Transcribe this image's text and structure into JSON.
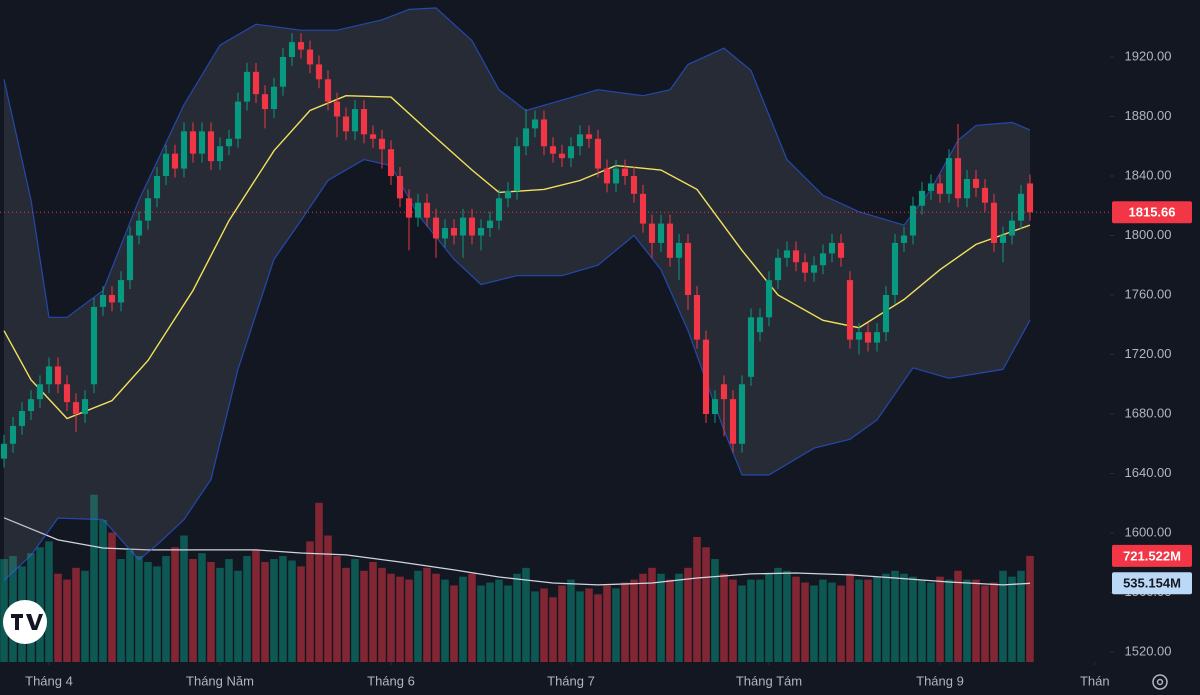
{
  "chart_data": {
    "type": "candlestick",
    "xlim": [
      -0.444,
      122.89
    ],
    "ylim": [
      1513.3,
      1958.3
    ],
    "yticks": [
      {
        "value": 1520,
        "label": "1520.00"
      },
      {
        "value": 1560,
        "label": "1560.00"
      },
      {
        "value": 1600,
        "label": "1600.00"
      },
      {
        "value": 1640,
        "label": "1640.00"
      },
      {
        "value": 1680,
        "label": "1680.00"
      },
      {
        "value": 1720,
        "label": "1720.00"
      },
      {
        "value": 1760,
        "label": "1760.00"
      },
      {
        "value": 1800,
        "label": "1800.00"
      },
      {
        "value": 1840,
        "label": "1840.00"
      },
      {
        "value": 1880,
        "label": "1880.00"
      },
      {
        "value": 1920,
        "label": "1920.00"
      }
    ],
    "xticks": [
      {
        "value": 5,
        "label": "Tháng 4"
      },
      {
        "value": 24,
        "label": "Tháng Năm"
      },
      {
        "value": 43,
        "label": "Tháng 6"
      },
      {
        "value": 63,
        "label": "Tháng 7"
      },
      {
        "value": 85,
        "label": "Tháng Tám"
      },
      {
        "value": 104,
        "label": "Tháng 9"
      },
      {
        "value": 121.2,
        "label": "Thán"
      }
    ],
    "up_color": "#089981",
    "down_color": "#f23645",
    "open": [
      1650,
      1660,
      1672,
      1682,
      1690,
      1700,
      1712,
      1700,
      1688,
      1680,
      1700,
      1752,
      1760,
      1755,
      1770,
      1800,
      1810,
      1825,
      1840,
      1855,
      1845,
      1870,
      1855,
      1870,
      1850,
      1860,
      1865,
      1890,
      1910,
      1895,
      1885,
      1900,
      1920,
      1930,
      1925,
      1915,
      1905,
      1890,
      1880,
      1870,
      1885,
      1868,
      1865,
      1858,
      1840,
      1825,
      1812,
      1822,
      1812,
      1798,
      1805,
      1800,
      1812,
      1800,
      1805,
      1810,
      1825,
      1830,
      1860,
      1872,
      1878,
      1860,
      1855,
      1852,
      1860,
      1868,
      1865,
      1845,
      1835,
      1845,
      1840,
      1828,
      1808,
      1795,
      1808,
      1785,
      1795,
      1760,
      1730,
      1680,
      1700,
      1690,
      1660,
      1705,
      1735,
      1745,
      1770,
      1785,
      1790,
      1782,
      1775,
      1780,
      1788,
      1795,
      1770,
      1730,
      1735,
      1728,
      1735,
      1760,
      1795,
      1800,
      1820,
      1830,
      1835,
      1828,
      1852,
      1825,
      1838,
      1832,
      1822,
      1795,
      1800,
      1810,
      1835
    ],
    "high": [
      1666,
      1678,
      1688,
      1696,
      1706,
      1718,
      1718,
      1706,
      1694,
      1696,
      1758,
      1766,
      1766,
      1776,
      1806,
      1816,
      1831,
      1846,
      1861,
      1861,
      1876,
      1876,
      1876,
      1876,
      1866,
      1871,
      1896,
      1916,
      1916,
      1901,
      1906,
      1926,
      1936,
      1936,
      1931,
      1921,
      1911,
      1896,
      1886,
      1891,
      1891,
      1874,
      1871,
      1864,
      1846,
      1831,
      1828,
      1828,
      1818,
      1811,
      1811,
      1818,
      1818,
      1811,
      1816,
      1831,
      1836,
      1866,
      1885,
      1884,
      1884,
      1866,
      1861,
      1866,
      1874,
      1874,
      1871,
      1851,
      1851,
      1851,
      1846,
      1834,
      1814,
      1814,
      1814,
      1801,
      1801,
      1766,
      1736,
      1696,
      1706,
      1696,
      1706,
      1751,
      1751,
      1776,
      1791,
      1796,
      1796,
      1788,
      1786,
      1794,
      1801,
      1801,
      1776,
      1741,
      1741,
      1741,
      1766,
      1801,
      1806,
      1826,
      1836,
      1841,
      1841,
      1858,
      1875,
      1844,
      1844,
      1838,
      1828,
      1806,
      1816,
      1834,
      1841
    ],
    "low": [
      1644,
      1654,
      1666,
      1676,
      1684,
      1694,
      1694,
      1682,
      1668,
      1674,
      1694,
      1746,
      1749,
      1749,
      1764,
      1794,
      1804,
      1819,
      1834,
      1839,
      1839,
      1849,
      1849,
      1844,
      1844,
      1854,
      1859,
      1884,
      1889,
      1872,
      1879,
      1894,
      1914,
      1919,
      1909,
      1899,
      1884,
      1866,
      1864,
      1864,
      1862,
      1859,
      1845,
      1834,
      1819,
      1790,
      1806,
      1806,
      1785,
      1792,
      1794,
      1785,
      1794,
      1790,
      1799,
      1804,
      1819,
      1824,
      1854,
      1866,
      1854,
      1849,
      1846,
      1846,
      1854,
      1859,
      1839,
      1829,
      1829,
      1834,
      1822,
      1802,
      1785,
      1789,
      1779,
      1770,
      1750,
      1724,
      1674,
      1674,
      1665,
      1654,
      1654,
      1699,
      1729,
      1739,
      1764,
      1779,
      1776,
      1769,
      1769,
      1774,
      1782,
      1779,
      1724,
      1720,
      1722,
      1722,
      1729,
      1754,
      1789,
      1794,
      1814,
      1824,
      1822,
      1822,
      1819,
      1819,
      1826,
      1816,
      1789,
      1782,
      1794,
      1804,
      1810
    ],
    "close": [
      1660,
      1672,
      1682,
      1690,
      1700,
      1712,
      1700,
      1688,
      1680,
      1690,
      1752,
      1760,
      1755,
      1770,
      1800,
      1810,
      1825,
      1840,
      1855,
      1845,
      1870,
      1855,
      1870,
      1850,
      1860,
      1865,
      1890,
      1910,
      1895,
      1885,
      1900,
      1920,
      1930,
      1925,
      1915,
      1905,
      1890,
      1880,
      1870,
      1885,
      1868,
      1865,
      1858,
      1840,
      1825,
      1812,
      1822,
      1812,
      1798,
      1805,
      1800,
      1812,
      1800,
      1805,
      1810,
      1825,
      1830,
      1860,
      1872,
      1878,
      1860,
      1855,
      1852,
      1860,
      1868,
      1865,
      1845,
      1835,
      1845,
      1840,
      1828,
      1808,
      1795,
      1808,
      1785,
      1795,
      1760,
      1730,
      1680,
      1690,
      1690,
      1660,
      1700,
      1745,
      1745,
      1770,
      1785,
      1790,
      1782,
      1775,
      1780,
      1788,
      1795,
      1785,
      1730,
      1735,
      1728,
      1735,
      1760,
      1795,
      1800,
      1820,
      1830,
      1835,
      1828,
      1852,
      1825,
      1838,
      1832,
      1822,
      1795,
      1800,
      1810,
      1828,
      1815.66
    ],
    "volume": {
      "vlim": [
        0,
        4500
      ],
      "values": [
        700,
        720,
        650,
        740,
        780,
        820,
        600,
        560,
        640,
        620,
        1137,
        965,
        880,
        700,
        760,
        720,
        680,
        650,
        720,
        780,
        860,
        700,
        740,
        680,
        640,
        700,
        620,
        720,
        760,
        680,
        700,
        720,
        690,
        650,
        820,
        1082,
        860,
        720,
        640,
        700,
        620,
        680,
        640,
        600,
        580,
        560,
        620,
        640,
        600,
        560,
        520,
        580,
        600,
        520,
        540,
        560,
        520,
        600,
        640,
        480,
        500,
        440,
        520,
        560,
        480,
        500,
        460,
        520,
        500,
        540,
        560,
        600,
        640,
        600,
        560,
        600,
        640,
        850,
        780,
        700,
        600,
        560,
        520,
        560,
        560,
        600,
        640,
        620,
        580,
        540,
        520,
        560,
        540,
        520,
        600,
        560,
        560,
        580,
        600,
        620,
        600,
        580,
        560,
        540,
        580,
        560,
        620,
        560,
        560,
        520,
        540,
        620,
        580,
        620,
        721.522
      ],
      "value_labels": [
        null,
        null,
        null,
        null,
        null,
        null,
        null,
        null,
        null,
        null,
        null,
        null,
        null,
        null,
        null,
        null,
        null,
        null,
        null,
        null,
        null,
        null,
        null,
        null,
        null,
        null,
        null,
        null,
        null,
        null,
        null,
        null,
        null,
        null,
        null,
        null,
        null,
        null,
        null,
        null,
        null,
        null,
        null,
        null,
        null,
        null,
        null,
        null,
        null,
        null,
        null,
        null,
        null,
        null,
        null,
        null,
        null,
        null,
        null,
        null,
        null,
        null,
        null,
        null,
        null,
        null,
        null,
        null,
        null,
        null,
        null,
        null,
        null,
        null,
        null,
        null,
        null,
        null,
        null,
        null,
        null,
        null,
        null,
        null,
        null,
        null,
        null,
        null,
        null,
        null,
        null,
        null,
        null,
        null,
        null,
        null,
        null,
        null,
        null,
        null,
        null,
        null,
        null,
        null,
        null,
        null,
        null,
        null,
        null,
        null,
        null,
        null,
        null,
        null,
        "721.522M"
      ]
    },
    "volume_ma": {
      "color": "#d1d4dc",
      "x": [
        0,
        6,
        11,
        16,
        22,
        28,
        33,
        38,
        44,
        50,
        55,
        61,
        66,
        72,
        77,
        83,
        88,
        94,
        99,
        105,
        111,
        114
      ],
      "values": [
        980,
        830,
        775,
        762,
        762,
        762,
        741,
        728,
        680,
        626,
        578,
        537,
        524,
        537,
        571,
        599,
        605,
        592,
        571,
        544,
        524,
        535.154
      ],
      "value_labels": [
        null,
        null,
        null,
        null,
        null,
        null,
        null,
        null,
        null,
        null,
        null,
        null,
        null,
        null,
        null,
        null,
        null,
        null,
        null,
        null,
        null,
        "535.154M"
      ]
    },
    "bollinger": {
      "fill": "rgba(120,123,134,0.2)",
      "basis": {
        "color": "#f2e15a",
        "x": [
          0,
          3,
          7,
          12,
          16,
          21,
          25,
          30,
          34,
          38,
          43,
          47,
          52,
          55,
          60,
          64,
          68,
          73,
          77,
          82,
          86,
          91,
          95,
          100,
          104,
          108,
          114
        ],
        "values": [
          1736,
          1703,
          1677,
          1689,
          1716,
          1763,
          1810,
          1857,
          1884,
          1894,
          1893,
          1871,
          1844,
          1829,
          1831,
          1837,
          1847,
          1844,
          1831,
          1790,
          1760,
          1743,
          1738,
          1757,
          1777,
          1794,
          1807
        ]
      },
      "upper": {
        "color": "#2962ff",
        "x": [
          0,
          3,
          5,
          7,
          11,
          15,
          20,
          24,
          28,
          33,
          37,
          42,
          45,
          48,
          52,
          55,
          58,
          62,
          66,
          71,
          74,
          76,
          80,
          83,
          87,
          91,
          95,
          100,
          103,
          106,
          108,
          112,
          114
        ],
        "values": [
          1905,
          1824,
          1745,
          1745,
          1763,
          1824,
          1888,
          1928,
          1942,
          1938,
          1938,
          1945,
          1952,
          1953,
          1931,
          1898,
          1884,
          1891,
          1898,
          1894,
          1898,
          1915,
          1926,
          1911,
          1851,
          1827,
          1816,
          1807,
          1831,
          1864,
          1874,
          1876,
          1871
        ]
      },
      "lower": {
        "color": "#2962ff",
        "x": [
          0,
          3,
          6,
          11,
          15,
          17,
          20,
          23,
          26,
          30,
          33,
          36,
          40,
          43,
          46,
          50,
          53,
          57,
          62,
          66,
          70,
          73,
          76,
          80,
          82,
          85,
          90,
          94,
          97,
          101,
          105,
          111,
          114
        ],
        "values": [
          1568,
          1585,
          1610,
          1609,
          1582,
          1592,
          1609,
          1636,
          1710,
          1784,
          1810,
          1837,
          1851,
          1847,
          1814,
          1784,
          1767,
          1773,
          1773,
          1780,
          1800,
          1777,
          1736,
          1669,
          1639,
          1639,
          1657,
          1663,
          1676,
          1711,
          1704,
          1710,
          1743
        ]
      }
    },
    "last_price_line": true
  }
}
